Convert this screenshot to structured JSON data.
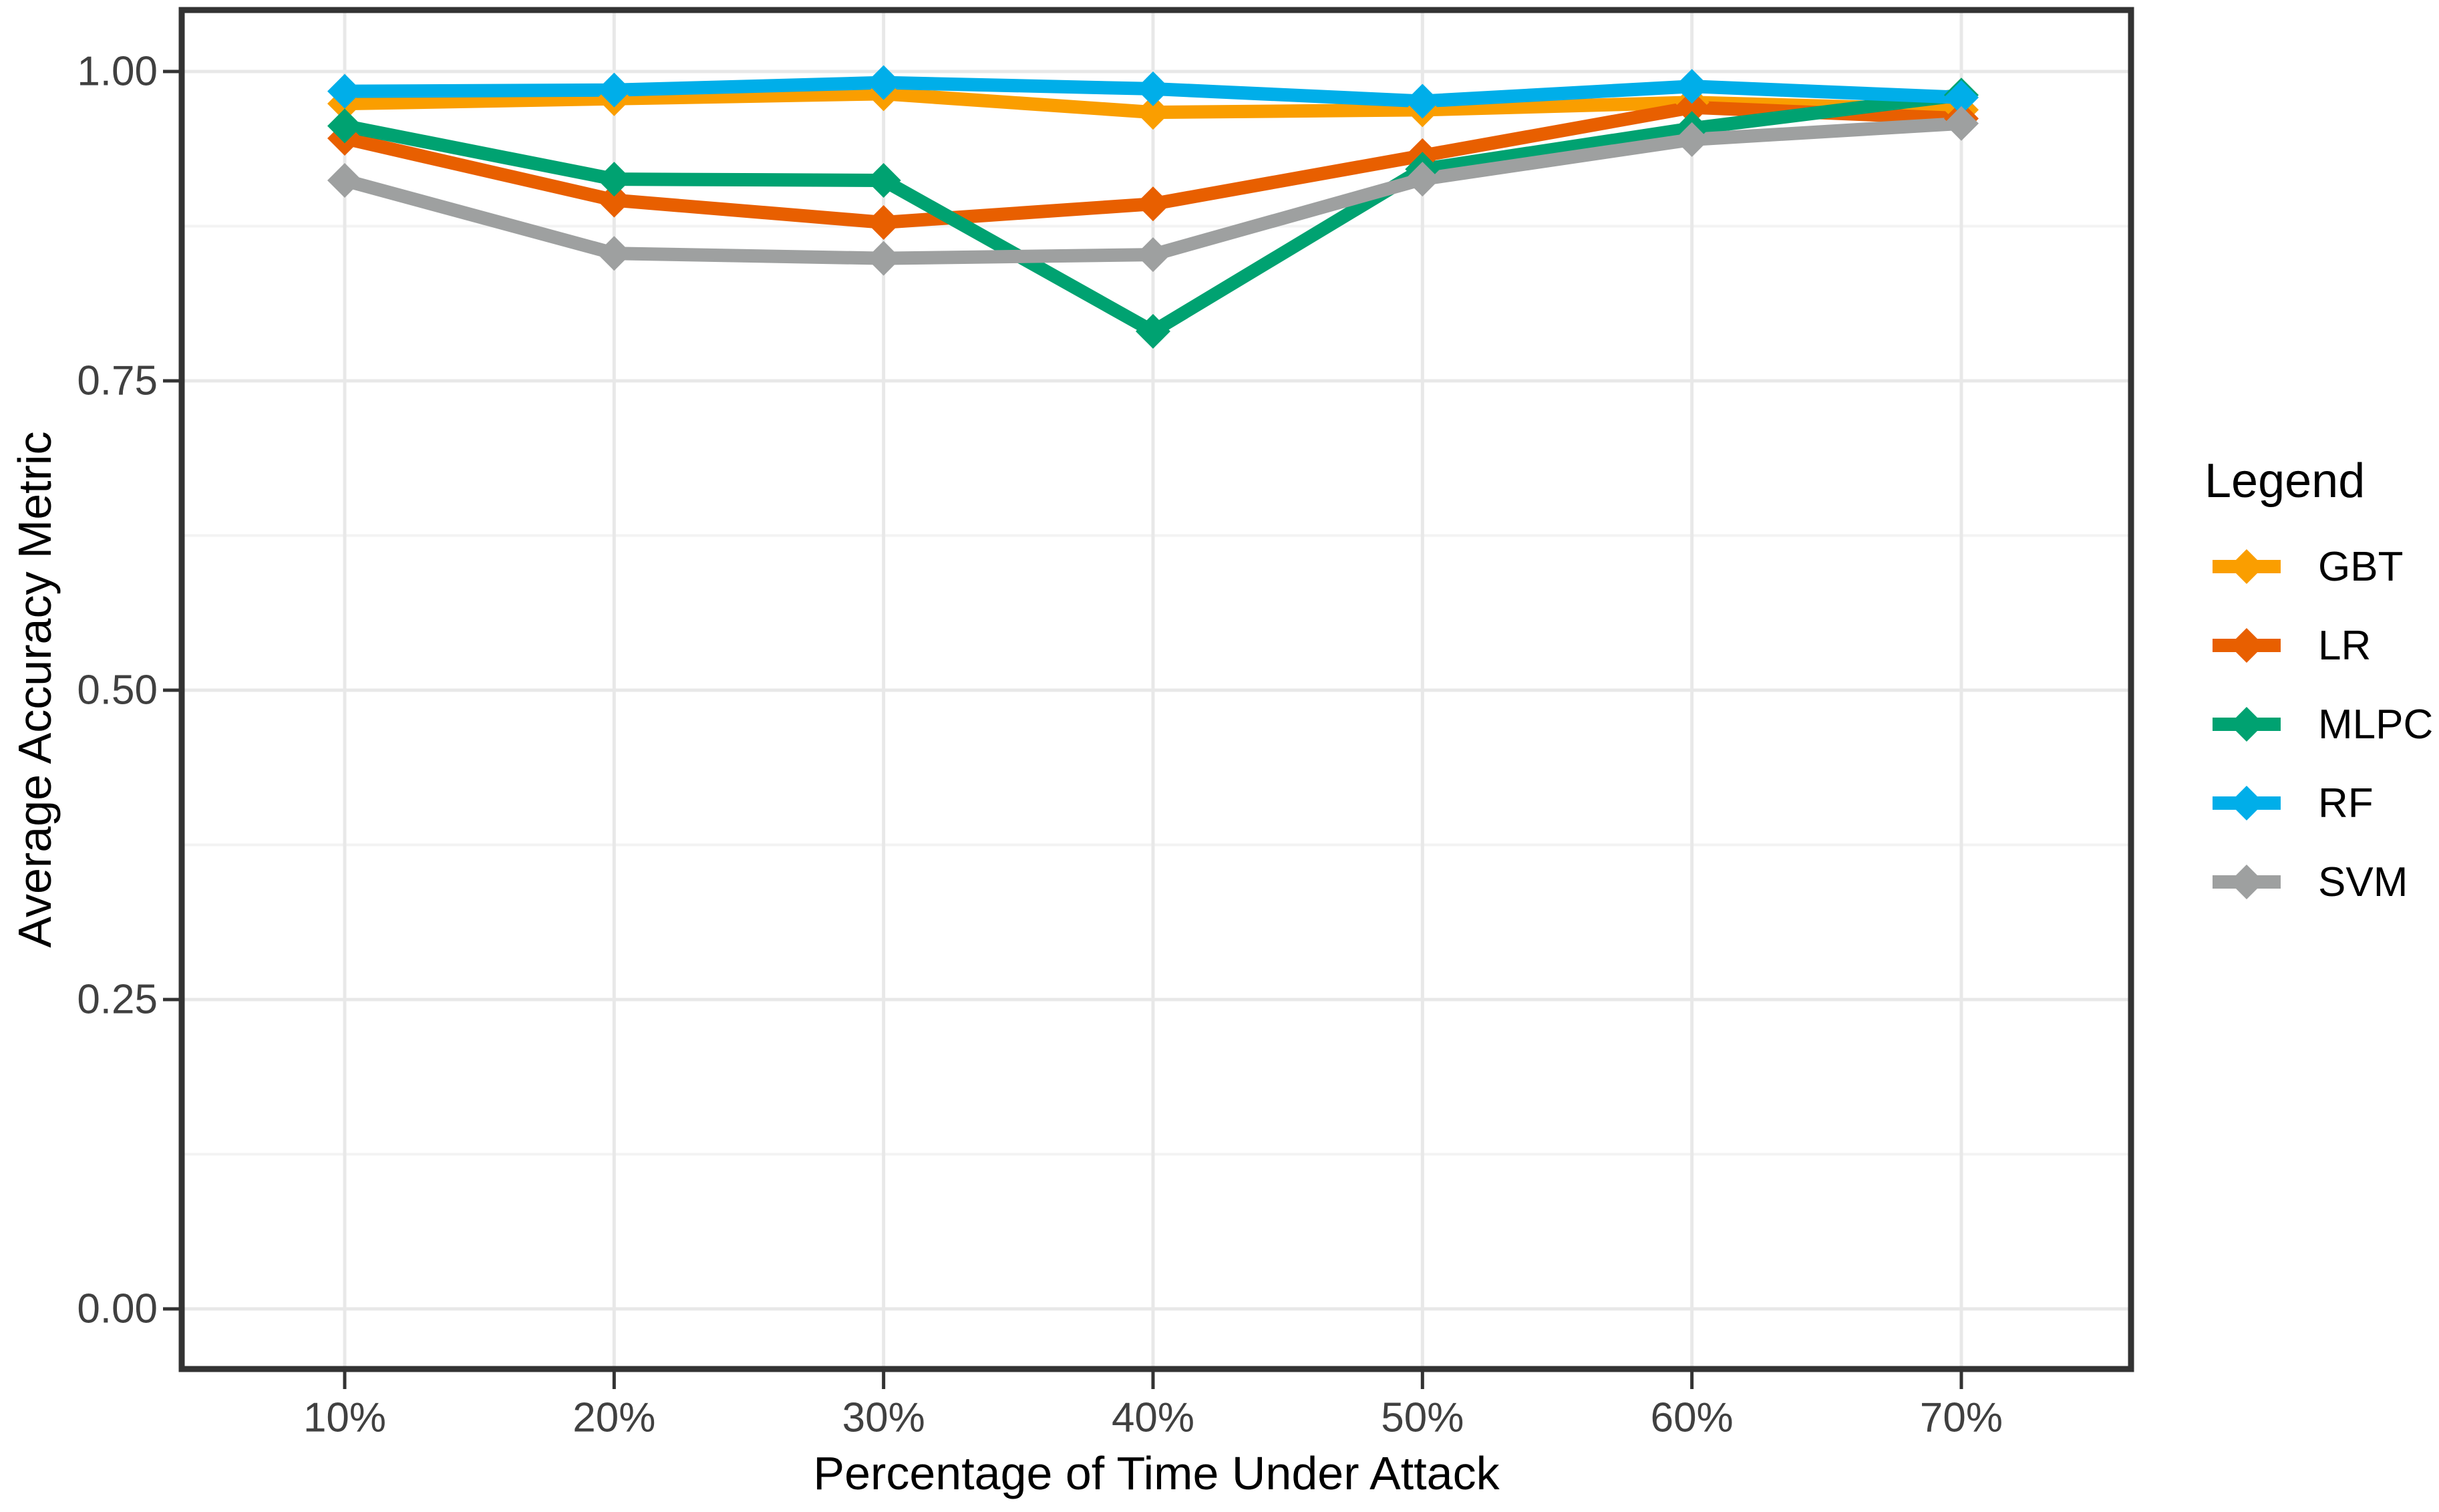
{
  "chart_data": {
    "type": "line",
    "title": "",
    "xlabel": "Percentage of Time Under Attack",
    "ylabel": "Average Accuracy Metric",
    "legend_title": "Legend",
    "legend_position": "right",
    "marker": "diamond",
    "grid": {
      "horizontal_major": true,
      "horizontal_minor": true,
      "vertical_major": true
    },
    "x_tick_labels": [
      "10%",
      "20%",
      "30%",
      "40%",
      "50%",
      "60%",
      "70%"
    ],
    "x_values": [
      10,
      20,
      30,
      40,
      50,
      60,
      70
    ],
    "y_ticks": [
      0.0,
      0.25,
      0.5,
      0.75,
      1.0
    ],
    "y_tick_labels": [
      "0.00",
      "0.25",
      "0.50",
      "0.75",
      "1.00"
    ],
    "y_minor_ticks": [
      0.125,
      0.375,
      0.625,
      0.875
    ],
    "ylim": [
      -0.05,
      1.05
    ],
    "series": [
      {
        "name": "GBT",
        "color": "#FA9E00",
        "values": [
          0.974,
          0.978,
          0.982,
          0.967,
          0.969,
          0.975,
          0.969
        ]
      },
      {
        "name": "LR",
        "color": "#E85F00",
        "values": [
          0.946,
          0.896,
          0.878,
          0.893,
          0.932,
          0.971,
          0.962
        ]
      },
      {
        "name": "MLPC",
        "color": "#00A271",
        "values": [
          0.956,
          0.913,
          0.912,
          0.79,
          0.921,
          0.954,
          0.981
        ]
      },
      {
        "name": "RF",
        "color": "#00AEE9",
        "values": [
          0.984,
          0.985,
          0.991,
          0.986,
          0.976,
          0.988,
          0.979
        ]
      },
      {
        "name": "SVM",
        "color": "#9EA0A0",
        "values": [
          0.912,
          0.853,
          0.849,
          0.852,
          0.913,
          0.945,
          0.958
        ]
      }
    ],
    "style_colors": {
      "panel_border": "#333333",
      "tick_mark": "#333333",
      "tick_label": "#404040",
      "grid_major": "#E8E8E8",
      "grid_minor": "#F3F3F3"
    }
  }
}
